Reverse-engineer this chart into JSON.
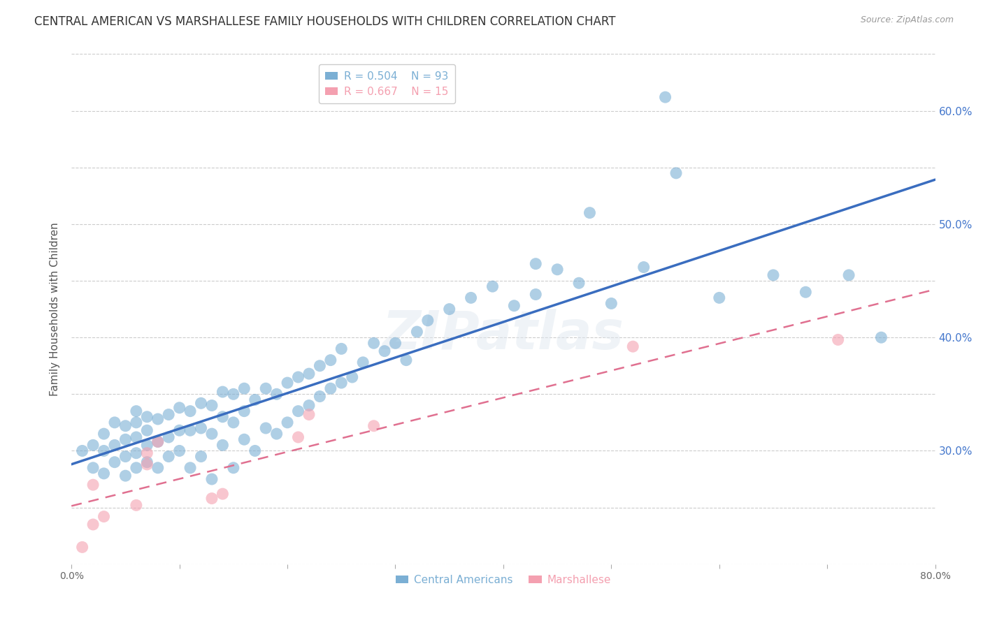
{
  "title": "CENTRAL AMERICAN VS MARSHALLESE FAMILY HOUSEHOLDS WITH CHILDREN CORRELATION CHART",
  "source": "Source: ZipAtlas.com",
  "ylabel": "Family Households with Children",
  "xlim": [
    0.0,
    0.8
  ],
  "ylim": [
    0.2,
    0.65
  ],
  "xticks": [
    0.0,
    0.1,
    0.2,
    0.3,
    0.4,
    0.5,
    0.6,
    0.7,
    0.8
  ],
  "yticks": [
    0.2,
    0.25,
    0.3,
    0.35,
    0.4,
    0.45,
    0.5,
    0.55,
    0.6,
    0.65
  ],
  "grid_color": "#cccccc",
  "background_color": "#ffffff",
  "watermark": "ZIPatlas",
  "legend_R_blue": "0.504",
  "legend_N_blue": "93",
  "legend_R_pink": "0.667",
  "legend_N_pink": "15",
  "blue_color": "#7bafd4",
  "pink_color": "#f4a0b0",
  "line_blue": "#3a6dbf",
  "line_pink": "#e07090",
  "title_fontsize": 12,
  "axis_label_fontsize": 11,
  "tick_fontsize": 10,
  "blue_scatter_x": [
    0.01,
    0.02,
    0.02,
    0.03,
    0.03,
    0.03,
    0.04,
    0.04,
    0.04,
    0.05,
    0.05,
    0.05,
    0.05,
    0.06,
    0.06,
    0.06,
    0.06,
    0.06,
    0.07,
    0.07,
    0.07,
    0.07,
    0.08,
    0.08,
    0.08,
    0.09,
    0.09,
    0.09,
    0.1,
    0.1,
    0.1,
    0.11,
    0.11,
    0.11,
    0.12,
    0.12,
    0.12,
    0.13,
    0.13,
    0.13,
    0.14,
    0.14,
    0.14,
    0.15,
    0.15,
    0.15,
    0.16,
    0.16,
    0.16,
    0.17,
    0.17,
    0.18,
    0.18,
    0.19,
    0.19,
    0.2,
    0.2,
    0.21,
    0.21,
    0.22,
    0.22,
    0.23,
    0.23,
    0.24,
    0.24,
    0.25,
    0.25,
    0.26,
    0.27,
    0.28,
    0.29,
    0.3,
    0.31,
    0.32,
    0.33,
    0.35,
    0.37,
    0.39,
    0.41,
    0.43,
    0.45,
    0.47,
    0.5,
    0.53,
    0.56,
    0.6,
    0.65,
    0.68,
    0.72,
    0.75,
    0.43,
    0.48,
    0.55
  ],
  "blue_scatter_y": [
    0.3,
    0.285,
    0.305,
    0.28,
    0.3,
    0.315,
    0.29,
    0.305,
    0.325,
    0.278,
    0.295,
    0.31,
    0.322,
    0.285,
    0.298,
    0.312,
    0.325,
    0.335,
    0.29,
    0.305,
    0.318,
    0.33,
    0.285,
    0.308,
    0.328,
    0.295,
    0.312,
    0.332,
    0.3,
    0.318,
    0.338,
    0.285,
    0.318,
    0.335,
    0.295,
    0.32,
    0.342,
    0.275,
    0.315,
    0.34,
    0.305,
    0.33,
    0.352,
    0.285,
    0.325,
    0.35,
    0.31,
    0.335,
    0.355,
    0.3,
    0.345,
    0.32,
    0.355,
    0.315,
    0.35,
    0.325,
    0.36,
    0.335,
    0.365,
    0.34,
    0.368,
    0.348,
    0.375,
    0.355,
    0.38,
    0.36,
    0.39,
    0.365,
    0.378,
    0.395,
    0.388,
    0.395,
    0.38,
    0.405,
    0.415,
    0.425,
    0.435,
    0.445,
    0.428,
    0.438,
    0.46,
    0.448,
    0.43,
    0.462,
    0.545,
    0.435,
    0.455,
    0.44,
    0.455,
    0.4,
    0.465,
    0.51,
    0.612
  ],
  "pink_scatter_x": [
    0.01,
    0.02,
    0.02,
    0.03,
    0.06,
    0.07,
    0.07,
    0.08,
    0.13,
    0.14,
    0.21,
    0.22,
    0.28,
    0.52,
    0.71
  ],
  "pink_scatter_y": [
    0.215,
    0.235,
    0.27,
    0.242,
    0.252,
    0.288,
    0.298,
    0.308,
    0.258,
    0.262,
    0.312,
    0.332,
    0.322,
    0.392,
    0.398
  ]
}
